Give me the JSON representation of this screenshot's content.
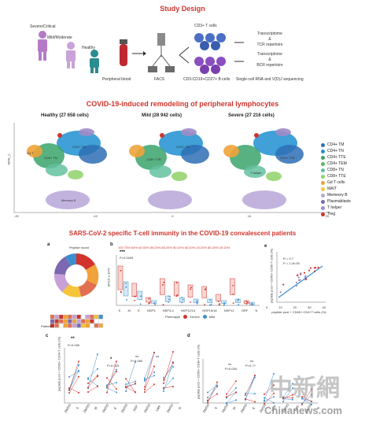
{
  "study": {
    "title": "Study Design",
    "groups": [
      "Severe/Critical",
      "Mild/Moderate",
      "Healthy"
    ],
    "steps": [
      "Peripheral blood",
      "FACS"
    ],
    "cells": [
      "CD3+ T cells",
      "CD3-CD19+CD27+ B cells"
    ],
    "outputs": [
      "Transcriptome",
      "&",
      "TCR repertoire",
      "Transcriptome",
      "&",
      "BCR repertoire"
    ],
    "method": "Single-cell RNA and V(D)J sequencing"
  },
  "umap": {
    "title": "COVID-19-induced remodeling of peripheral lymphocytes",
    "panels": [
      "Healthy (27 658 cells)",
      "Mild (28 942 cells)",
      "Severe (27 216 cells)"
    ],
    "ylabel": "tSNE_2",
    "xticks": [
      "-20",
      "-10",
      "0",
      "10",
      "20"
    ],
    "yticks": [
      "20",
      "10",
      "0",
      "-10",
      "-20"
    ],
    "cluster_labels": [
      "CD4+ TM",
      "CD4+ TN",
      "CD8+ TN",
      "CD8+ TTE",
      "CD4+ TTE",
      "Gd T",
      "T helper",
      "Memory B"
    ],
    "legend": [
      {
        "label": "CD4+ TM",
        "color": "#2e6fb5"
      },
      {
        "label": "CD4+ TN",
        "color": "#1f8fd0"
      },
      {
        "label": "CD4+ TTE",
        "color": "#3aa36a"
      },
      {
        "label": "CD4+ TEM",
        "color": "#5cb85c"
      },
      {
        "label": "CD8+ TN",
        "color": "#63c1a0"
      },
      {
        "label": "CD8+ TTE",
        "color": "#8fd16a"
      },
      {
        "label": "Gd T cells",
        "color": "#f0a33a"
      },
      {
        "label": "MAIT",
        "color": "#f5c43a"
      },
      {
        "label": "Memeory B",
        "color": "#b7a6d8"
      },
      {
        "label": "Plasmablasts",
        "color": "#7b68b0"
      },
      {
        "label": "T helper",
        "color": "#9d8bc7"
      },
      {
        "label": "Treg",
        "color": "#d0342c"
      }
    ]
  },
  "sars": {
    "title": "SARS-CoV-2 specific T-cell immunity in the COVID-19 convalescent patients",
    "panel_a": {
      "letter": "a",
      "label": "Peptide round",
      "row_label": "Patients"
    },
    "panel_b": {
      "letter": "b",
      "ylabel": "SFC/1 x 10^6",
      "stat": "***",
      "pval": "P=0.0009",
      "xcats": [
        "S",
        "M",
        "E",
        "NSP3",
        "NSP3-4",
        "NSP12/14",
        "NSP15/16",
        "NSP12",
        "ORF",
        "N"
      ],
      "legend_title": "Phenotype",
      "legend": [
        {
          "label": "Severe",
          "color": "#d0342c"
        },
        {
          "label": "Mild",
          "color": "#3b8fd0"
        }
      ],
      "top_pcts": "100:73% 60%:40:03% 80:25% 80:20% 80:20% 60:20% 20:20% 80:20% 20:20%"
    },
    "panel_e": {
      "letter": "e",
      "r": "R = 0.7",
      "p": "P = 1.2e-05",
      "ylabel": "peptide pool + CD69+ CD8+T cells (%)",
      "xlabel": "peptide pool + CD69+ CD4+T cells (%)",
      "xticks": [
        "0",
        "10",
        "20",
        "30",
        "40"
      ]
    },
    "panel_c": {
      "letter": "c",
      "stat1": "**",
      "p1": "P=0.005",
      "stat2": "*",
      "p2": "P=0.043",
      "ns1": "ns",
      "p3": "P=0.083",
      "ns2": "ns",
      "xcats": [
        "DMSO",
        "S",
        "DMSO",
        "M",
        "DMSO",
        "E",
        "DMSO",
        "NSP",
        "DMSO",
        "ORF",
        "DMSO",
        "N"
      ],
      "ylabel": "peptide pool + CD69+ CD4+T cells (%)"
    },
    "panel_d": {
      "letter": "d",
      "ns1": "ns",
      "p1": "P=0.054",
      "ns2": "ns",
      "p2": "P=0.??",
      "xcats": [
        "DMSO",
        "S",
        "DMSO",
        "M",
        "DMSO",
        "E",
        "DMSO",
        "NSP",
        "DMSO",
        "ORF",
        "DMSO",
        "N"
      ],
      "ylabel": "peptide pool + CD69+ CD8+T cells (%)"
    }
  },
  "watermark": {
    "cn": "中新網",
    "en": "Chinanews.com"
  }
}
